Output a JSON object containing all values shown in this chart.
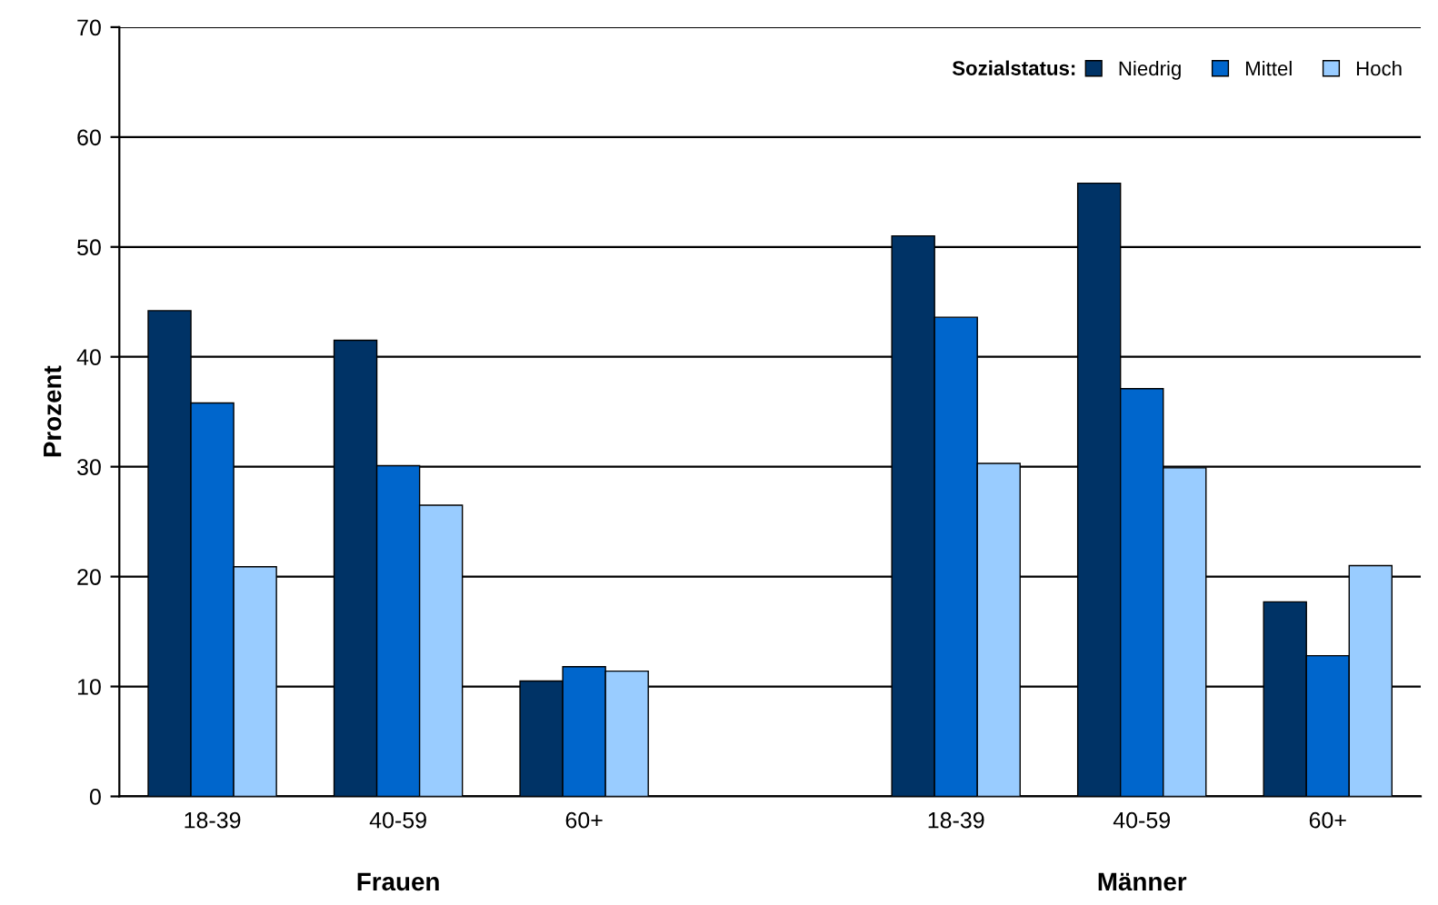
{
  "chart_data": {
    "type": "bar",
    "ylabel": "Prozent",
    "legend_title": "Sozialstatus:",
    "categories": [
      "18-39",
      "40-59",
      "60+",
      null,
      "18-39",
      "40-59",
      "60+"
    ],
    "series": [
      {
        "name": "Niedrig",
        "color": "#003366",
        "values": [
          44.2,
          41.5,
          10.5,
          null,
          51.0,
          55.8,
          17.7
        ]
      },
      {
        "name": "Mittel",
        "color": "#0066cc",
        "values": [
          35.8,
          30.1,
          11.8,
          null,
          43.6,
          37.1,
          12.8
        ]
      },
      {
        "name": "Hoch",
        "color": "#99ccff",
        "values": [
          20.9,
          26.5,
          11.4,
          null,
          30.3,
          29.9,
          21.0
        ]
      }
    ],
    "ylim": [
      0,
      70
    ],
    "yticks": [
      0,
      10,
      20,
      30,
      40,
      50,
      60,
      70
    ],
    "grid": "y",
    "legend": "top right",
    "annotations": [
      "Frauen",
      "Männer"
    ]
  }
}
